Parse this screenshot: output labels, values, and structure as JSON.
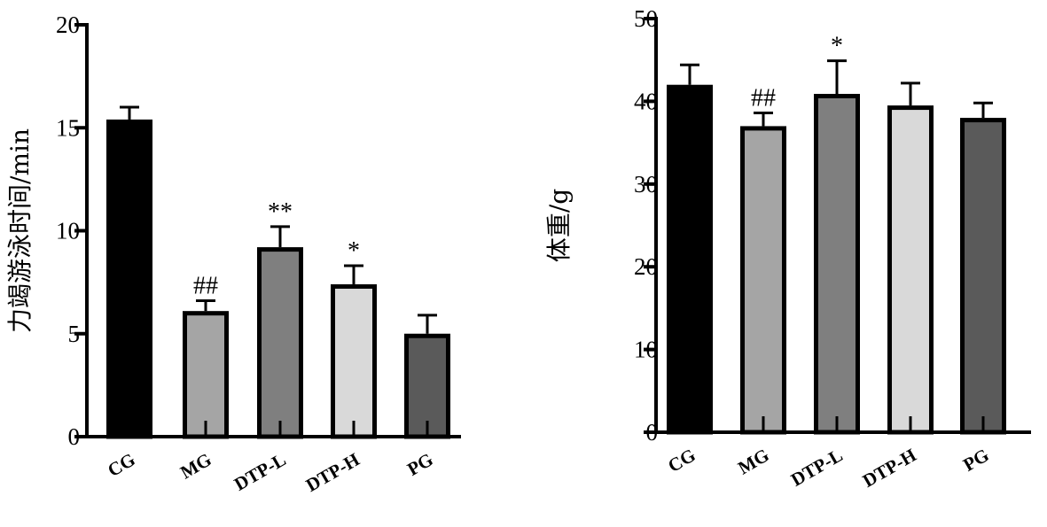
{
  "chart_data": [
    {
      "type": "bar",
      "title": "",
      "xlabel": "",
      "ylabel": "力竭游泳时间/min",
      "categories": [
        "CG",
        "MG",
        "DTP-L",
        "DTP-H",
        "PG"
      ],
      "values": [
        15.4,
        6.1,
        9.2,
        7.4,
        5.0
      ],
      "errors": [
        0.6,
        0.5,
        1.0,
        0.9,
        0.9
      ],
      "significance": [
        "",
        "##",
        "**",
        "*",
        ""
      ],
      "ylim": [
        0,
        20
      ],
      "yticks": [
        0,
        5,
        10,
        15,
        20
      ],
      "bar_colors": [
        "#000000",
        "#a5a5a5",
        "#7f7f7f",
        "#d9d9d9",
        "#5a5a5a"
      ],
      "grid": false,
      "legend": "none"
    },
    {
      "type": "bar",
      "title": "",
      "xlabel": "",
      "ylabel": "体重/g",
      "categories": [
        "CG",
        "MG",
        "DTP-L",
        "DTP-H",
        "PG"
      ],
      "values": [
        42.0,
        37.0,
        40.9,
        39.5,
        38.0
      ],
      "errors": [
        2.4,
        1.6,
        4.0,
        2.7,
        1.8
      ],
      "significance": [
        "",
        "##",
        "*",
        "",
        ""
      ],
      "ylim": [
        0,
        50
      ],
      "yticks": [
        0,
        10,
        20,
        30,
        40,
        50
      ],
      "bar_colors": [
        "#000000",
        "#a5a5a5",
        "#7f7f7f",
        "#d9d9d9",
        "#5a5a5a"
      ],
      "grid": false,
      "legend": "none"
    }
  ]
}
